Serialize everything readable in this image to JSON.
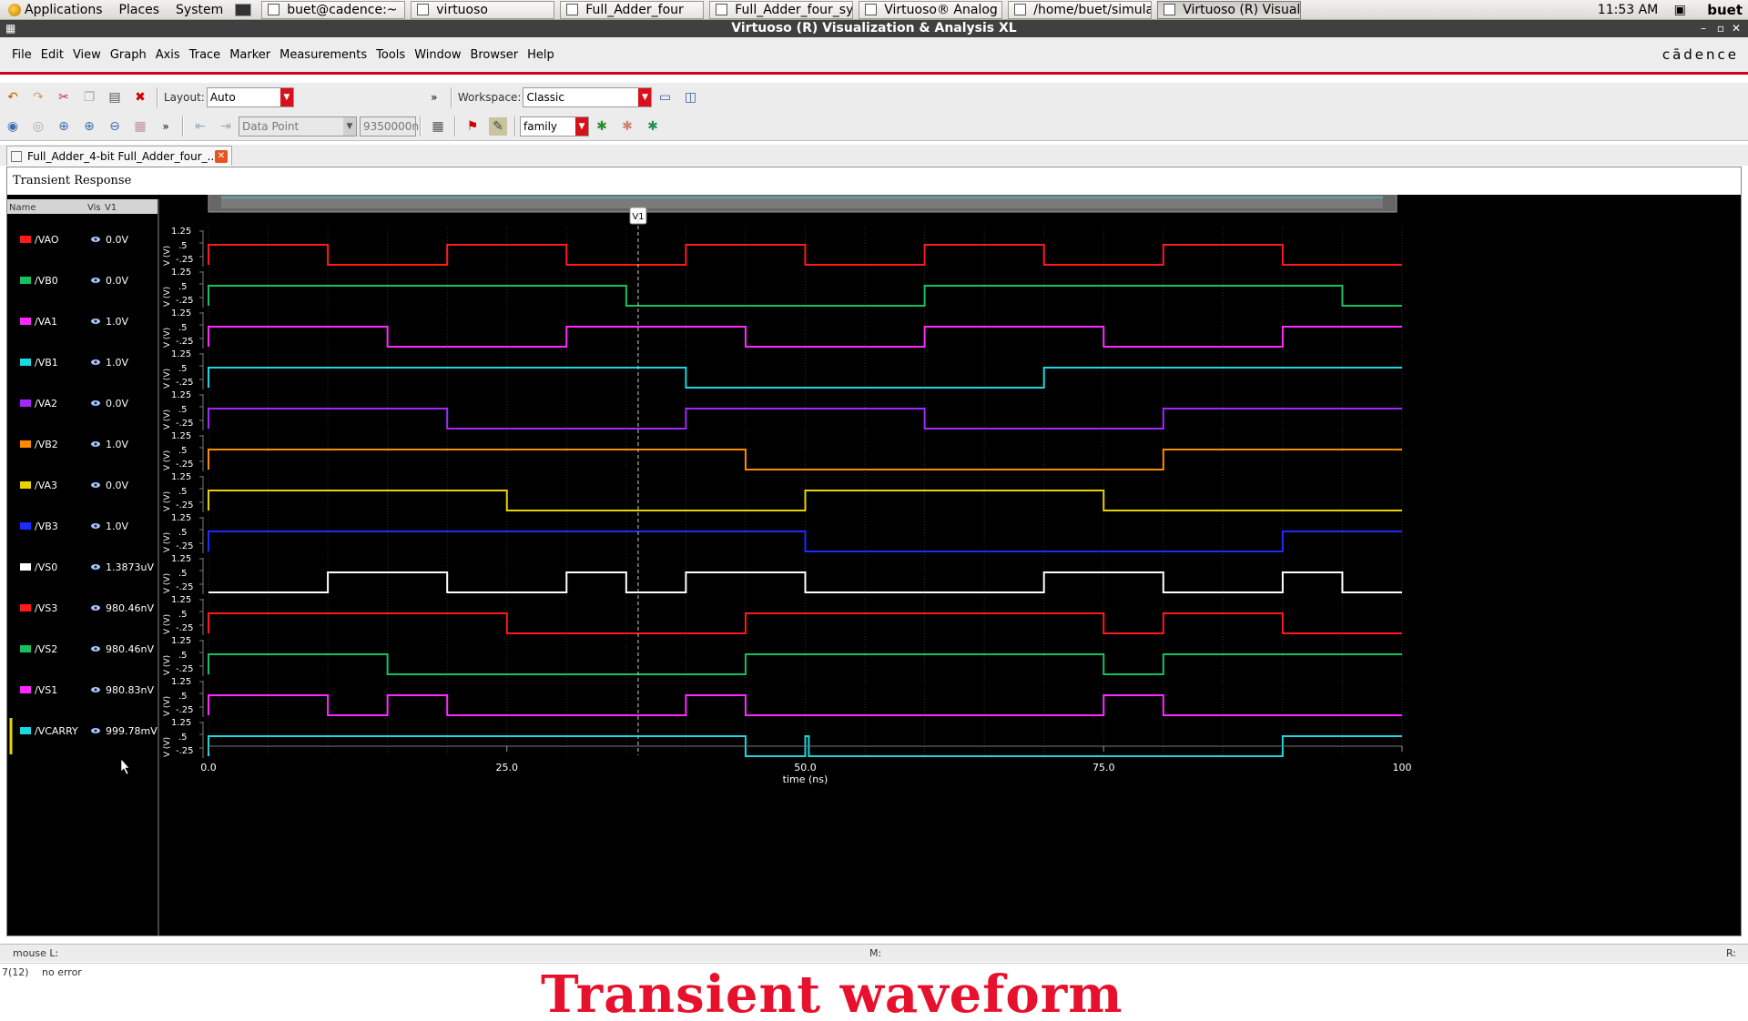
{
  "panel": {
    "menus": [
      "Applications",
      "Places",
      "System"
    ],
    "tasks": [
      {
        "label": "buet@cadence:~"
      },
      {
        "label": "virtuoso"
      },
      {
        "label": "Full_Adder_four"
      },
      {
        "label": "Full_Adder_four_sym"
      },
      {
        "label": "Virtuoso® Analog Des..."
      },
      {
        "label": "/home/buet/simulation..."
      },
      {
        "label": "Virtuoso (R) Visualizati..."
      }
    ],
    "clock": "11:53 AM",
    "user": "buet"
  },
  "window": {
    "title": "Virtuoso (R) Visualization & Analysis XL",
    "brand": "cādence"
  },
  "menubar": [
    "File",
    "Edit",
    "View",
    "Graph",
    "Axis",
    "Trace",
    "Marker",
    "Measurements",
    "Tools",
    "Window",
    "Browser",
    "Help"
  ],
  "toolbar": {
    "layout_label": "Layout:",
    "layout_value": "Auto",
    "workspace_label": "Workspace:",
    "workspace_value": "Classic",
    "datapoint_value": "Data Point",
    "datapoint_num": "9350000n",
    "family_value": "family"
  },
  "doc_tab": {
    "label": "Full_Adder_4-bit Full_Adder_four_..."
  },
  "subwindow": {
    "title": "Transient Response"
  },
  "trace_table": {
    "col_name": "Name",
    "col_vis": "Vis",
    "col_v1": "V1"
  },
  "marker_label": "V1",
  "status": {
    "mouse_l": "mouse L:",
    "m": "M:",
    "r": "R:",
    "line_no": "7(12)",
    "message": "no error"
  },
  "caption": "Transient waveform",
  "chart_data": {
    "type": "line",
    "xlabel": "time (ns)",
    "xlim": [
      0,
      100
    ],
    "x_ticks": [
      "0.0",
      "25.0",
      "50.0",
      "75.0",
      "100"
    ],
    "ylabel": "V (V)",
    "y_ticks": [
      "1.25",
      ".5",
      "-.25"
    ],
    "marker_x": 36,
    "grid": true,
    "series": [
      {
        "name": "/VAO",
        "color": "#ff1a1a",
        "v1": "0.0V",
        "steps": [
          [
            0,
            1
          ],
          [
            10,
            0
          ],
          [
            20,
            1
          ],
          [
            30,
            0
          ],
          [
            40,
            1
          ],
          [
            50,
            0
          ],
          [
            60,
            1
          ],
          [
            70,
            0
          ],
          [
            80,
            1
          ],
          [
            90,
            0
          ],
          [
            100,
            0
          ]
        ]
      },
      {
        "name": "/VB0",
        "color": "#16c060",
        "v1": "0.0V",
        "steps": [
          [
            0,
            1
          ],
          [
            35,
            0
          ],
          [
            60,
            1
          ],
          [
            95,
            0
          ],
          [
            100,
            0
          ]
        ]
      },
      {
        "name": "/VA1",
        "color": "#ff28ff",
        "v1": "1.0V",
        "steps": [
          [
            0,
            1
          ],
          [
            15,
            0
          ],
          [
            30,
            1
          ],
          [
            45,
            0
          ],
          [
            60,
            1
          ],
          [
            75,
            0
          ],
          [
            90,
            1
          ],
          [
            100,
            1
          ]
        ]
      },
      {
        "name": "/VB1",
        "color": "#1ad8e0",
        "v1": "1.0V",
        "steps": [
          [
            0,
            1
          ],
          [
            40,
            0
          ],
          [
            70,
            1
          ],
          [
            100,
            1
          ]
        ]
      },
      {
        "name": "/VA2",
        "color": "#a328ff",
        "v1": "0.0V",
        "steps": [
          [
            0,
            1
          ],
          [
            20,
            0
          ],
          [
            40,
            1
          ],
          [
            60,
            0
          ],
          [
            80,
            1
          ],
          [
            100,
            1
          ]
        ]
      },
      {
        "name": "/VB2",
        "color": "#ff8c00",
        "v1": "1.0V",
        "steps": [
          [
            0,
            1
          ],
          [
            45,
            0
          ],
          [
            80,
            1
          ],
          [
            100,
            1
          ]
        ]
      },
      {
        "name": "/VA3",
        "color": "#e8d300",
        "v1": "0.0V",
        "steps": [
          [
            0,
            1
          ],
          [
            25,
            0
          ],
          [
            50,
            1
          ],
          [
            75,
            0
          ],
          [
            100,
            0
          ]
        ]
      },
      {
        "name": "/VB3",
        "color": "#1a2cff",
        "v1": "1.0V",
        "steps": [
          [
            0,
            1
          ],
          [
            50,
            0
          ],
          [
            90,
            1
          ],
          [
            100,
            1
          ]
        ]
      },
      {
        "name": "/VS0",
        "color": "#ffffff",
        "v1": "1.3873uV",
        "steps": [
          [
            0,
            0
          ],
          [
            10,
            1
          ],
          [
            20,
            0
          ],
          [
            30,
            1
          ],
          [
            35,
            0
          ],
          [
            40,
            1
          ],
          [
            50,
            0
          ],
          [
            70,
            1
          ],
          [
            80,
            0
          ],
          [
            90,
            1
          ],
          [
            95,
            0
          ],
          [
            100,
            0
          ]
        ]
      },
      {
        "name": "/VS3",
        "color": "#ff1a1a",
        "v1": "980.46nV",
        "steps": [
          [
            0,
            1
          ],
          [
            25,
            0
          ],
          [
            45,
            1
          ],
          [
            75,
            0
          ],
          [
            80,
            1
          ],
          [
            90,
            0
          ],
          [
            100,
            0
          ]
        ]
      },
      {
        "name": "/VS2",
        "color": "#16c060",
        "v1": "980.46nV",
        "steps": [
          [
            0,
            1
          ],
          [
            15,
            0
          ],
          [
            45,
            1
          ],
          [
            75,
            0
          ],
          [
            80,
            1
          ],
          [
            100,
            1
          ]
        ]
      },
      {
        "name": "/VS1",
        "color": "#ff28ff",
        "v1": "980.83nV",
        "steps": [
          [
            0,
            1
          ],
          [
            10,
            0
          ],
          [
            15,
            1
          ],
          [
            20,
            0
          ],
          [
            40,
            1
          ],
          [
            45,
            0
          ],
          [
            75,
            1
          ],
          [
            80,
            0
          ],
          [
            100,
            0
          ]
        ]
      },
      {
        "name": "/VCARRY",
        "color": "#1ad8e0",
        "v1": "999.78mV",
        "steps": [
          [
            0,
            1
          ],
          [
            45,
            0
          ],
          [
            50,
            1
          ],
          [
            50.3,
            0
          ],
          [
            90,
            1
          ],
          [
            100,
            1
          ]
        ]
      }
    ]
  }
}
